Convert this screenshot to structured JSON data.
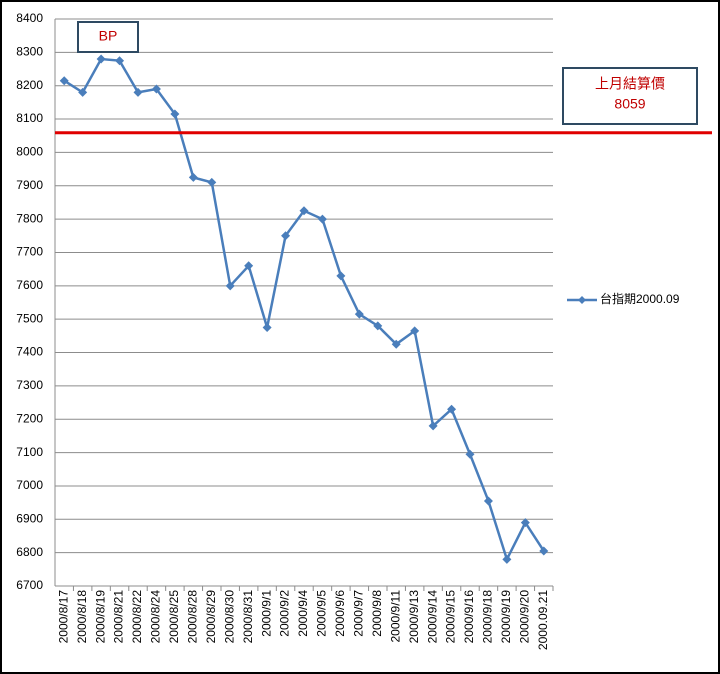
{
  "chart_data": {
    "type": "line",
    "categories": [
      "2000/8/17",
      "2000/8/18",
      "2000/8/19",
      "2000/8/21",
      "2000/8/22",
      "2000/8/24",
      "2000/8/25",
      "2000/8/28",
      "2000/8/29",
      "2000/8/30",
      "2000/8/31",
      "2000/9/1",
      "2000/9/2",
      "2000/9/4",
      "2000/9/5",
      "2000/9/6",
      "2000/9/7",
      "2000/9/8",
      "2000/9/11",
      "2000/9/13",
      "2000/9/14",
      "2000/9/15",
      "2000/9/16",
      "2000/9/18",
      "2000/9/19",
      "2000/9/20",
      "2000.09.21"
    ],
    "series": [
      {
        "name": "台指期2000.09",
        "color": "#4a7ebb",
        "values": [
          8215,
          8180,
          8280,
          8275,
          8180,
          8190,
          8115,
          7925,
          7910,
          7600,
          7660,
          7475,
          7750,
          7825,
          7800,
          7630,
          7515,
          7480,
          7425,
          7465,
          7180,
          7230,
          7095,
          6955,
          6780,
          6890,
          6805
        ]
      }
    ],
    "ylim": [
      6700,
      8400
    ],
    "yticks": [
      6700,
      6800,
      6900,
      7000,
      7100,
      7200,
      7300,
      7400,
      7500,
      7600,
      7700,
      7800,
      7900,
      8000,
      8100,
      8200,
      8300,
      8400
    ],
    "grid": true,
    "legend": "right",
    "reference_line": {
      "value": 8059,
      "color": "#e00000"
    },
    "annotations": [
      "BP",
      "上月結算價"
    ]
  }
}
